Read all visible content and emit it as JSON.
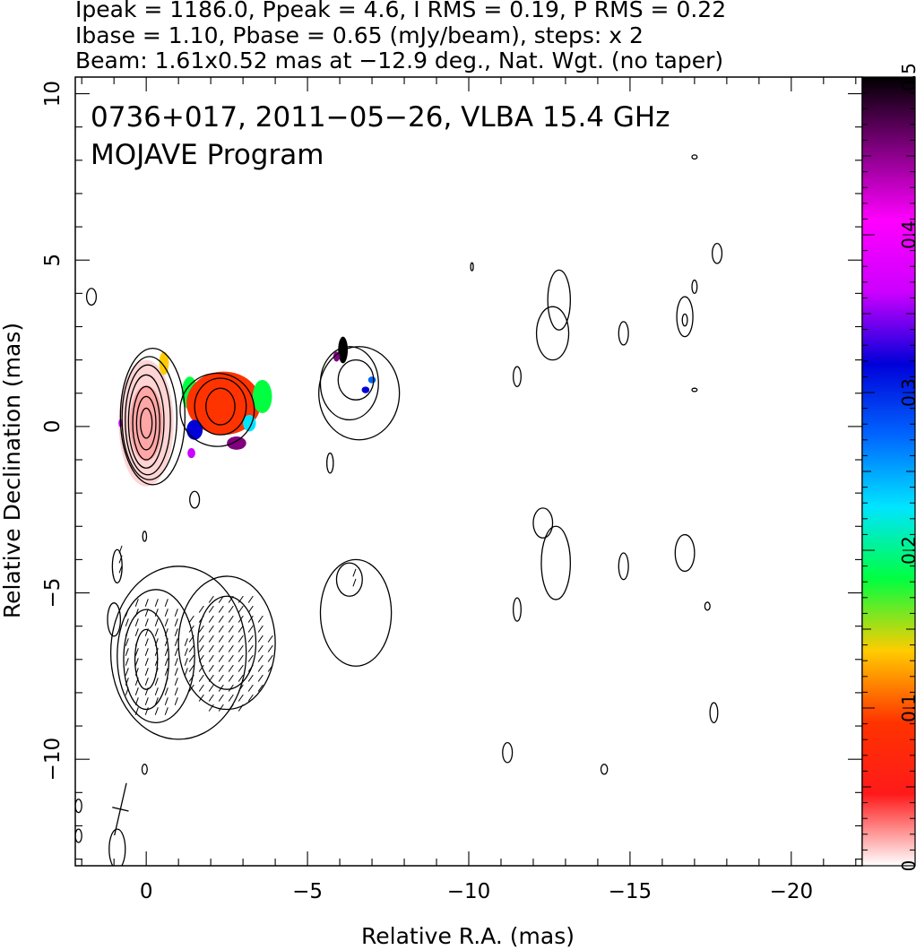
{
  "header": {
    "line1": "Ipeak = 1186.0, Ppeak = 4.6, I RMS = 0.19, P RMS = 0.22",
    "line2": "Ibase = 1.10, Pbase = 0.65 (mJy/beam), steps: x 2",
    "line3": "Beam: 1.61x0.52 mas at −12.9 deg., Nat. Wgt. (no taper)"
  },
  "colors": {
    "contour": "#000000",
    "frame": "#000000",
    "colorbar_stops": [
      "#ffffff",
      "#ff1a1a",
      "#ff3300",
      "#ffcc00",
      "#00ff40",
      "#00e5ff",
      "#0066ff",
      "#0000d9",
      "#cc00ff",
      "#ff00ff",
      "#800080",
      "#000000"
    ]
  },
  "chart_data": {
    "type": "heatmap",
    "title": "0736+017, 2011−05−26, VLBA 15.4 GHz",
    "subtitle": "MOJAVE Program",
    "xlabel": "Relative R.A. (mas)",
    "ylabel": "Relative Declination (mas)",
    "xlim": [
      2.2,
      -22.2
    ],
    "ylim": [
      -13.2,
      10.5
    ],
    "x_ticks": [
      {
        "value": 0,
        "label": "0"
      },
      {
        "value": -5,
        "label": "−5"
      },
      {
        "value": -10,
        "label": "−10"
      },
      {
        "value": -15,
        "label": "−15"
      },
      {
        "value": -20,
        "label": "−20"
      }
    ],
    "y_ticks": [
      {
        "value": -10,
        "label": "−10"
      },
      {
        "value": -5,
        "label": "−5"
      },
      {
        "value": 0,
        "label": "0"
      },
      {
        "value": 5,
        "label": "5"
      },
      {
        "value": 10,
        "label": "10"
      }
    ],
    "colorbar": {
      "range": [
        0,
        0.5
      ],
      "ticks": [
        {
          "value": 0,
          "label": "0"
        },
        {
          "value": 0.1,
          "label": "0.1"
        },
        {
          "value": 0.2,
          "label": "0.2"
        },
        {
          "value": 0.3,
          "label": "0.3"
        },
        {
          "value": 0.4,
          "label": "0.4"
        },
        {
          "value": 0.5,
          "label": "0.5"
        }
      ]
    },
    "intensity_map": {
      "description_free": true,
      "core": {
        "x": 0.0,
        "y": 0.1,
        "sx": 0.85,
        "sy": 1.9
      },
      "jet_knot": {
        "x": -2.3,
        "y": 0.6,
        "sx": 1.15,
        "sy": 0.9
      },
      "contours": [
        {
          "x": 0.0,
          "y": 0.1,
          "rx": 0.18,
          "ry": 0.45
        },
        {
          "x": 0.0,
          "y": 0.1,
          "rx": 0.3,
          "ry": 0.8
        },
        {
          "x": 0.0,
          "y": 0.1,
          "rx": 0.42,
          "ry": 1.1
        },
        {
          "x": 0.0,
          "y": 0.15,
          "rx": 0.55,
          "ry": 1.4
        },
        {
          "x": -0.05,
          "y": 0.2,
          "rx": 0.7,
          "ry": 1.65
        },
        {
          "x": -0.1,
          "y": 0.25,
          "rx": 0.85,
          "ry": 1.85
        },
        {
          "x": -0.2,
          "y": 0.3,
          "rx": 1.0,
          "ry": 2.05
        },
        {
          "x": -2.3,
          "y": 0.6,
          "rx": 0.45,
          "ry": 0.55
        },
        {
          "x": -2.3,
          "y": 0.6,
          "rx": 0.8,
          "ry": 0.85
        },
        {
          "x": -2.2,
          "y": 0.5,
          "rx": 1.15,
          "ry": 1.1
        },
        {
          "x": -6.5,
          "y": 1.4,
          "rx": 0.55,
          "ry": 0.6
        },
        {
          "x": -6.3,
          "y": 1.3,
          "rx": 0.9,
          "ry": 1.1
        },
        {
          "x": -6.6,
          "y": 1.0,
          "rx": 1.25,
          "ry": 1.4
        },
        {
          "x": -12.8,
          "y": 3.8,
          "rx": 0.35,
          "ry": 0.9
        },
        {
          "x": -12.6,
          "y": 2.8,
          "rx": 0.5,
          "ry": 0.8
        },
        {
          "x": -11.5,
          "y": 1.5,
          "rx": 0.12,
          "ry": 0.3
        },
        {
          "x": -14.8,
          "y": 2.8,
          "rx": 0.15,
          "ry": 0.35
        },
        {
          "x": -16.7,
          "y": 3.3,
          "rx": 0.25,
          "ry": 0.6
        },
        {
          "x": -16.7,
          "y": 3.2,
          "rx": 0.08,
          "ry": 0.18
        },
        {
          "x": -17.7,
          "y": 5.2,
          "rx": 0.15,
          "ry": 0.3
        },
        {
          "x": -17.0,
          "y": 4.2,
          "rx": 0.08,
          "ry": 0.2
        },
        {
          "x": 1.7,
          "y": 3.9,
          "rx": 0.15,
          "ry": 0.25
        },
        {
          "x": -5.7,
          "y": -1.1,
          "rx": 0.1,
          "ry": 0.3
        },
        {
          "x": -1.5,
          "y": -2.2,
          "rx": 0.15,
          "ry": 0.25
        },
        {
          "x": 0.05,
          "y": -3.3,
          "rx": 0.06,
          "ry": 0.15
        },
        {
          "x": -12.3,
          "y": -2.9,
          "rx": 0.3,
          "ry": 0.45
        },
        {
          "x": -12.7,
          "y": -4.1,
          "rx": 0.45,
          "ry": 1.1
        },
        {
          "x": -14.8,
          "y": -4.2,
          "rx": 0.15,
          "ry": 0.4
        },
        {
          "x": -16.7,
          "y": -3.8,
          "rx": 0.3,
          "ry": 0.55
        },
        {
          "x": -11.5,
          "y": -5.5,
          "rx": 0.12,
          "ry": 0.35
        },
        {
          "x": 0.9,
          "y": -4.2,
          "rx": 0.15,
          "ry": 0.5
        },
        {
          "x": 1.0,
          "y": -5.8,
          "rx": 0.2,
          "ry": 0.5
        },
        {
          "x": 0.0,
          "y": -7.0,
          "rx": 0.35,
          "ry": 0.9
        },
        {
          "x": 0.0,
          "y": -7.0,
          "rx": 0.7,
          "ry": 1.5
        },
        {
          "x": -0.3,
          "y": -6.9,
          "rx": 1.2,
          "ry": 2.0
        },
        {
          "x": -1.0,
          "y": -6.8,
          "rx": 2.1,
          "ry": 2.6
        },
        {
          "x": -2.5,
          "y": -6.5,
          "rx": 1.5,
          "ry": 2.0
        },
        {
          "x": -2.5,
          "y": -6.5,
          "rx": 0.9,
          "ry": 1.4
        },
        {
          "x": -6.3,
          "y": -4.6,
          "rx": 0.4,
          "ry": 0.5
        },
        {
          "x": -6.5,
          "y": -5.6,
          "rx": 1.1,
          "ry": 1.6
        },
        {
          "x": -17.6,
          "y": -8.6,
          "rx": 0.12,
          "ry": 0.3
        },
        {
          "x": -17.4,
          "y": -5.4,
          "rx": 0.08,
          "ry": 0.12
        },
        {
          "x": -11.2,
          "y": -9.8,
          "rx": 0.15,
          "ry": 0.3
        },
        {
          "x": -14.2,
          "y": -10.3,
          "rx": 0.1,
          "ry": 0.15
        },
        {
          "x": 0.05,
          "y": -10.3,
          "rx": 0.08,
          "ry": 0.15
        },
        {
          "x": 0.9,
          "y": -12.7,
          "rx": 0.25,
          "ry": 0.6
        },
        {
          "x": 2.1,
          "y": -12.3,
          "rx": 0.1,
          "ry": 0.2
        },
        {
          "x": 2.1,
          "y": -11.4,
          "rx": 0.1,
          "ry": 0.2
        },
        {
          "x": -10.1,
          "y": 4.8,
          "rx": 0.04,
          "ry": 0.12
        },
        {
          "x": -17.0,
          "y": 8.1,
          "rx": 0.08,
          "ry": 0.06
        },
        {
          "x": -17.0,
          "y": 1.1,
          "rx": 0.08,
          "ry": 0.05
        }
      ],
      "polarization_patches": [
        {
          "x": -0.55,
          "y": 1.9,
          "rx": 0.15,
          "ry": 0.35,
          "value": 0.12
        },
        {
          "x": -1.35,
          "y": 1.0,
          "rx": 0.25,
          "ry": 0.5,
          "value": 0.17
        },
        {
          "x": -2.4,
          "y": 0.7,
          "rx": 1.15,
          "ry": 0.95,
          "value": 0.1
        },
        {
          "x": -3.6,
          "y": 0.9,
          "rx": 0.3,
          "ry": 0.5,
          "value": 0.19
        },
        {
          "x": -3.2,
          "y": 0.1,
          "rx": 0.2,
          "ry": 0.25,
          "value": 0.22
        },
        {
          "x": -1.5,
          "y": -0.1,
          "rx": 0.25,
          "ry": 0.3,
          "value": 0.33
        },
        {
          "x": -1.4,
          "y": -0.8,
          "rx": 0.12,
          "ry": 0.15,
          "value": 0.38
        },
        {
          "x": -2.8,
          "y": -0.5,
          "rx": 0.3,
          "ry": 0.2,
          "value": 0.45
        },
        {
          "x": -6.1,
          "y": 2.3,
          "rx": 0.15,
          "ry": 0.4,
          "value": 0.49
        },
        {
          "x": -5.9,
          "y": 2.1,
          "rx": 0.1,
          "ry": 0.15,
          "value": 0.44
        },
        {
          "x": -7.0,
          "y": 1.4,
          "rx": 0.12,
          "ry": 0.1,
          "value": 0.26
        },
        {
          "x": -6.8,
          "y": 1.1,
          "rx": 0.12,
          "ry": 0.1,
          "value": 0.31
        },
        {
          "x": 0.8,
          "y": 0.1,
          "rx": 0.06,
          "ry": 0.12,
          "value": 0.37
        }
      ],
      "evpa_regions": [
        {
          "x": -0.2,
          "y": -6.9,
          "rx": 1.1,
          "ry": 1.9,
          "angle": 70
        },
        {
          "x": -2.5,
          "y": -6.8,
          "rx": 1.4,
          "ry": 1.9,
          "angle": 55
        },
        {
          "x": 0.9,
          "y": -4.0,
          "rx": 0.2,
          "ry": 0.6,
          "angle": 70
        },
        {
          "x": -6.4,
          "y": -4.5,
          "rx": 0.25,
          "ry": 0.4,
          "angle": 70
        }
      ],
      "beam": {
        "x": 0.8,
        "y": -11.5,
        "major": 1.61,
        "minor": 0.52,
        "pa": -12.9
      }
    }
  }
}
